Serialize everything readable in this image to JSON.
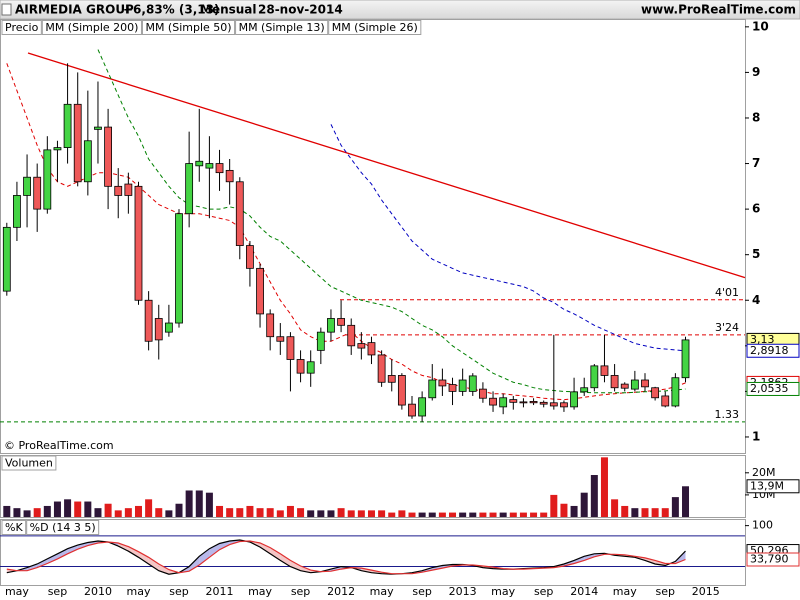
{
  "header": {
    "symbol": "AIRMEDIA GROUP",
    "change": "+6,83% (3,13)",
    "period": "Mensual",
    "date": "28-nov-2014",
    "site": "www.ProRealTime.com",
    "copyright": "© ProRealTime.com"
  },
  "chart_data": [
    {
      "type": "candlestick",
      "name": "Precio",
      "categories": [
        null,
        "may",
        null,
        null,
        null,
        "sep",
        null,
        null,
        null,
        "2010",
        null,
        null,
        null,
        "may",
        null,
        null,
        null,
        "sep",
        null,
        null,
        null,
        "2011",
        null,
        null,
        null,
        "may",
        null,
        null,
        null,
        "sep",
        null,
        null,
        null,
        "2012",
        null,
        null,
        null,
        "may",
        null,
        null,
        null,
        "sep",
        null,
        null,
        null,
        "2013",
        null,
        null,
        null,
        "may",
        null,
        null,
        null,
        "sep",
        null,
        null,
        null,
        "2014",
        null,
        null,
        null,
        "may",
        null,
        null,
        null,
        "sep",
        null,
        null,
        null,
        "2015"
      ],
      "open": [
        4.2,
        5.6,
        6.3,
        6.7,
        6.0,
        7.3,
        7.35,
        8.3,
        6.6,
        7.75,
        7.8,
        6.5,
        6.55,
        6.5,
        4.0,
        3.6,
        3.3,
        3.5,
        5.9,
        6.95,
        6.9,
        7.0,
        6.85,
        6.6,
        5.2,
        4.7,
        3.7,
        3.2,
        3.2,
        2.7,
        2.4,
        2.9,
        3.3,
        3.6,
        3.45,
        3.05,
        3.07,
        2.8,
        2.35,
        2.35,
        1.72,
        1.46,
        1.86,
        2.25,
        2.15,
        2.0,
        2.0,
        2.05,
        1.85,
        1.66,
        1.82,
        1.77,
        1.78,
        1.76,
        1.75,
        1.75,
        1.66,
        1.99,
        2.08,
        2.56,
        2.35,
        2.16,
        2.05,
        2.25,
        2.08,
        1.9,
        1.68,
        2.3,
        null,
        null
      ],
      "high": [
        5.7,
        6.6,
        7.2,
        7.0,
        7.6,
        7.5,
        9.2,
        9.0,
        8.6,
        8.8,
        8.2,
        6.9,
        6.8,
        6.6,
        4.2,
        3.9,
        3.9,
        6.0,
        7.7,
        8.2,
        7.6,
        7.3,
        7.1,
        6.7,
        5.3,
        4.8,
        3.8,
        3.5,
        3.3,
        2.9,
        2.9,
        3.4,
        3.8,
        4.0,
        3.6,
        3.3,
        3.2,
        2.9,
        2.7,
        2.4,
        1.9,
        2.0,
        2.6,
        2.5,
        2.3,
        2.5,
        2.4,
        2.2,
        2.0,
        1.95,
        1.9,
        1.85,
        1.85,
        1.8,
        3.24,
        1.8,
        2.3,
        2.3,
        2.6,
        3.24,
        2.6,
        2.2,
        2.45,
        2.4,
        2.1,
        2.0,
        2.4,
        3.2,
        null,
        null
      ],
      "low": [
        4.1,
        5.3,
        5.6,
        5.5,
        5.9,
        6.6,
        7.0,
        6.5,
        6.3,
        7.0,
        6.0,
        5.8,
        5.9,
        3.9,
        2.9,
        2.7,
        3.2,
        3.4,
        5.6,
        6.6,
        5.8,
        6.4,
        6.1,
        4.9,
        4.3,
        3.4,
        2.9,
        2.8,
        2.0,
        2.2,
        2.1,
        2.6,
        3.1,
        3.3,
        2.8,
        2.7,
        2.6,
        2.1,
        2.0,
        1.6,
        1.4,
        1.33,
        1.8,
        1.9,
        1.7,
        1.9,
        1.9,
        1.75,
        1.55,
        1.5,
        1.6,
        1.65,
        1.7,
        1.65,
        1.6,
        1.55,
        1.6,
        1.9,
        2.0,
        2.2,
        2.0,
        2.0,
        2.0,
        2.0,
        1.8,
        1.65,
        1.65,
        2.2,
        null,
        null
      ],
      "close": [
        5.6,
        6.3,
        6.7,
        6.0,
        7.3,
        7.35,
        8.3,
        6.6,
        7.5,
        7.8,
        6.5,
        6.3,
        6.3,
        4.0,
        3.1,
        3.13,
        3.5,
        5.9,
        7.0,
        7.05,
        7.0,
        6.8,
        6.6,
        5.2,
        4.7,
        3.7,
        3.2,
        3.1,
        2.7,
        2.4,
        2.65,
        3.3,
        3.6,
        3.45,
        3.0,
        2.95,
        2.8,
        2.2,
        2.2,
        1.7,
        1.46,
        1.86,
        2.25,
        2.12,
        2.0,
        2.25,
        2.34,
        1.85,
        1.7,
        1.86,
        1.76,
        1.75,
        1.75,
        1.72,
        1.68,
        1.66,
        1.99,
        2.08,
        2.56,
        2.35,
        2.08,
        2.07,
        2.25,
        2.1,
        1.86,
        1.68,
        2.3,
        3.13,
        null,
        null
      ],
      "up_color": "#44d444",
      "down_color": "#ee5858",
      "ylim": [
        0.67,
        10.15
      ],
      "yticks": [
        1,
        2,
        3,
        4,
        5,
        6,
        7,
        8,
        9,
        10
      ],
      "last": {
        "value": 3.13,
        "label": "3,13"
      },
      "hlines": [
        {
          "value": 4.01,
          "label": "4'01",
          "color": "#e00000"
        },
        {
          "value": 3.24,
          "label": "3'24",
          "color": "#e00000"
        },
        {
          "value": 1.33,
          "label": "1.33",
          "color": "#008000"
        }
      ],
      "series": [
        {
          "name": "MM (Simple 200)",
          "color": "#000000",
          "values": [
            null,
            null,
            null,
            null,
            null,
            null,
            null,
            null,
            null,
            null,
            null,
            null,
            null,
            null,
            null,
            null,
            null,
            null,
            null,
            null,
            null,
            null,
            null,
            null,
            null,
            null,
            null,
            null,
            null,
            null,
            null,
            null,
            null,
            null,
            null,
            null,
            null,
            null,
            null,
            null,
            null,
            null,
            null,
            null,
            null,
            null,
            null,
            null,
            null,
            null,
            null,
            null,
            null,
            null,
            null,
            null,
            null,
            null,
            null,
            null,
            null,
            null,
            null,
            null,
            null,
            null,
            null,
            null,
            null,
            null
          ]
        },
        {
          "name": "MM (Simple 50)",
          "color": "#0000c0",
          "values": [
            null,
            null,
            null,
            null,
            null,
            null,
            null,
            null,
            null,
            null,
            null,
            null,
            null,
            null,
            null,
            null,
            null,
            null,
            null,
            null,
            null,
            null,
            null,
            null,
            null,
            null,
            null,
            null,
            null,
            null,
            null,
            null,
            7.86,
            7.4,
            7.1,
            6.8,
            6.55,
            6.2,
            5.9,
            5.6,
            5.3,
            5.1,
            4.9,
            4.8,
            4.7,
            4.6,
            4.55,
            4.5,
            4.45,
            4.4,
            4.35,
            4.3,
            4.2,
            4.05,
            3.95,
            3.8,
            3.7,
            3.58,
            3.45,
            3.35,
            3.25,
            3.15,
            3.05,
            3.0,
            2.95,
            2.93,
            2.91,
            2.8918,
            null,
            null
          ],
          "last": {
            "value": 2.8918,
            "label": "2,8918"
          }
        },
        {
          "name": "MM (Simple 13)",
          "color": "#e00000",
          "values": [
            9.2,
            8.6,
            8.0,
            7.4,
            6.9,
            6.6,
            6.5,
            6.6,
            6.7,
            6.8,
            6.8,
            6.75,
            6.7,
            6.5,
            6.3,
            6.1,
            6.0,
            5.9,
            5.9,
            5.9,
            5.85,
            5.8,
            5.75,
            5.6,
            5.2,
            4.8,
            4.4,
            4.0,
            3.7,
            3.35,
            3.2,
            3.1,
            3.1,
            3.2,
            3.3,
            3.1,
            2.95,
            2.85,
            2.7,
            2.6,
            2.45,
            2.35,
            2.3,
            2.2,
            2.15,
            2.1,
            2.05,
            2.0,
            1.95,
            1.95,
            1.92,
            1.9,
            1.88,
            1.85,
            1.83,
            1.82,
            1.84,
            1.87,
            1.9,
            1.93,
            1.95,
            1.97,
            1.98,
            2.0,
            2.02,
            2.05,
            2.1,
            2.1862,
            null,
            null
          ],
          "last": {
            "value": 2.1862,
            "label": "2,1862"
          }
        },
        {
          "name": "MM (Simple 26)",
          "color": "#008000",
          "values": [
            null,
            null,
            null,
            null,
            null,
            null,
            null,
            null,
            null,
            9.5,
            9.0,
            8.5,
            8.0,
            7.6,
            7.1,
            6.8,
            6.5,
            6.25,
            6.1,
            6.05,
            6.0,
            6.0,
            6.05,
            6.0,
            5.85,
            5.6,
            5.4,
            5.3,
            5.1,
            4.9,
            4.7,
            4.5,
            4.3,
            4.2,
            4.1,
            4.0,
            3.95,
            3.9,
            3.85,
            3.75,
            3.6,
            3.45,
            3.35,
            3.2,
            3.0,
            2.85,
            2.7,
            2.55,
            2.4,
            2.3,
            2.2,
            2.15,
            2.08,
            2.04,
            2.02,
            2.0,
            1.99,
            1.98,
            1.97,
            1.97,
            1.97,
            1.97,
            1.98,
            1.99,
            2.0,
            2.01,
            2.03,
            2.0535,
            null,
            null
          ],
          "last": {
            "value": 2.0535,
            "label": "2,0535"
          }
        }
      ]
    },
    {
      "type": "bar",
      "title": "Volumen",
      "values": [
        5,
        4,
        3,
        4,
        5,
        7,
        8,
        7,
        7,
        4,
        6,
        3,
        4,
        5,
        8,
        4,
        3,
        6,
        12,
        12,
        11,
        5,
        4,
        4,
        5,
        4,
        4,
        3,
        5,
        4,
        3,
        3,
        3,
        4,
        3,
        3,
        3,
        3,
        2,
        3,
        2,
        2,
        2,
        2,
        2,
        2,
        2,
        2,
        2,
        2,
        2,
        2,
        2,
        2,
        10,
        6,
        5,
        11,
        19,
        27,
        8,
        5,
        4,
        4,
        4,
        4,
        9,
        13.9,
        null,
        null
      ],
      "up_color": "#2e1638",
      "down_color": "#e01c1c",
      "ylim": [
        0,
        27.6
      ],
      "yticks": [
        {
          "value": 20,
          "label": "20M"
        },
        {
          "value": 10,
          "label": "10M"
        }
      ],
      "last": {
        "value": 13.9,
        "label": "13,9M"
      }
    },
    {
      "type": "line",
      "series": [
        {
          "name": "%K",
          "color": "#000000",
          "values": [
            8,
            12,
            18,
            25,
            35,
            45,
            55,
            62,
            67,
            70,
            68,
            60,
            50,
            38,
            25,
            12,
            5,
            8,
            20,
            40,
            55,
            65,
            70,
            72,
            68,
            58,
            45,
            32,
            20,
            12,
            8,
            10,
            15,
            20,
            18,
            12,
            8,
            6,
            5,
            6,
            8,
            12,
            18,
            22,
            24,
            24,
            22,
            18,
            16,
            15,
            15,
            16,
            17,
            18,
            20,
            25,
            32,
            40,
            45,
            46,
            42,
            40,
            38,
            32,
            25,
            22,
            30,
            50.296,
            null,
            null
          ],
          "last": {
            "value": 50.296,
            "label": "50,296"
          }
        },
        {
          "name": "%D (14 3 5)",
          "color": "#e03030",
          "values": [
            15,
            12,
            12,
            18,
            26,
            35,
            45,
            54,
            61,
            66,
            68,
            66,
            59,
            49,
            38,
            25,
            14,
            8,
            11,
            23,
            38,
            53,
            63,
            69,
            70,
            66,
            57,
            45,
            32,
            21,
            13,
            10,
            11,
            15,
            18,
            17,
            13,
            9,
            6,
            6,
            6,
            9,
            13,
            17,
            21,
            23,
            23,
            21,
            19,
            16,
            15,
            15,
            16,
            17,
            18,
            21,
            26,
            32,
            39,
            44,
            44,
            43,
            40,
            37,
            32,
            26,
            26,
            33.79,
            null,
            null
          ],
          "last": {
            "value": 33.79,
            "label": "33,790"
          }
        }
      ],
      "fill_up": "#b8b8ea",
      "fill_down": "#f4c6c6",
      "ylim": [
        -18,
        111
      ],
      "yticks": [
        100
      ],
      "hlines": [
        80,
        20
      ],
      "hline_color": "#1a1a8c"
    }
  ]
}
